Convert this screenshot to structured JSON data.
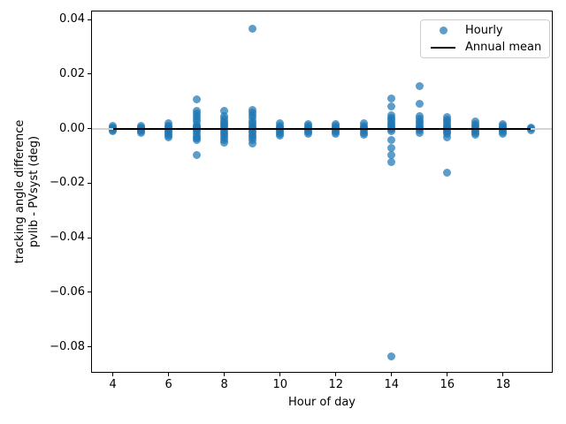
{
  "legend": {
    "items": [
      {
        "label": "Hourly",
        "marker": "dot-icon"
      },
      {
        "label": "Annual mean",
        "marker": "line-icon"
      }
    ]
  },
  "chart_data": {
    "type": "scatter",
    "title": "",
    "xlabel": "Hour of day",
    "ylabel_line1": "tracking angle difference",
    "ylabel_line2": "pvlib - PVsyst (deg)",
    "xlim": [
      3.25,
      19.75
    ],
    "ylim": [
      -0.0892,
      0.043
    ],
    "x_ticks": [
      4,
      6,
      8,
      10,
      12,
      14,
      16,
      18
    ],
    "x_tick_labels": [
      "4",
      "6",
      "8",
      "10",
      "12",
      "14",
      "16",
      "18"
    ],
    "y_ticks": [
      0.04,
      0.02,
      0.0,
      -0.02,
      -0.04,
      -0.06,
      -0.08
    ],
    "y_tick_labels": [
      "0.04",
      "0.02",
      "0.00",
      "−0.02",
      "−0.04",
      "−0.06",
      "−0.08"
    ],
    "grid": false,
    "legend_position": "upper right",
    "colors": {
      "scatter": "#1f77b4",
      "scatter_alpha": 0.72,
      "mean_line": "#000000",
      "zero_line": "#d3d3d3"
    },
    "series": [
      {
        "name": "Hourly",
        "kind": "scatter",
        "points_by_hour": {
          "4": [
            0.001,
            0.0005,
            0.0,
            -0.0005,
            -0.001
          ],
          "5": [
            0.001,
            0.0005,
            0.0,
            -0.0005,
            -0.001,
            -0.0015
          ],
          "6": [
            0.002,
            0.0012,
            0.0006,
            0.0,
            -0.0006,
            -0.0013,
            -0.002,
            -0.0026,
            -0.0032
          ],
          "7": [
            0.0106,
            0.0064,
            0.0055,
            0.0045,
            0.0035,
            0.0025,
            0.0015,
            0.0008,
            0.0003,
            0.0,
            -0.0004,
            -0.001,
            -0.0018,
            -0.0027,
            -0.0036,
            -0.0043,
            -0.0097
          ],
          "8": [
            0.0064,
            0.0045,
            0.0035,
            0.0027,
            0.002,
            0.0013,
            0.0007,
            0.0,
            -0.0007,
            -0.0015,
            -0.0023,
            -0.0031,
            -0.0042,
            -0.0052
          ],
          "9": [
            0.0368,
            0.0068,
            0.0058,
            0.0048,
            0.0038,
            0.0028,
            0.002,
            0.0012,
            0.0005,
            0.0,
            -0.0008,
            -0.0016,
            -0.0024,
            -0.0033,
            -0.0042,
            -0.0053
          ],
          "10": [
            0.002,
            0.0012,
            0.0005,
            0.0,
            -0.0006,
            -0.0013,
            -0.002,
            -0.0026
          ],
          "11": [
            0.0018,
            0.001,
            0.0004,
            0.0,
            -0.0005,
            -0.0012,
            -0.0019
          ],
          "12": [
            0.0018,
            0.001,
            0.0004,
            0.0,
            -0.0005,
            -0.0012,
            -0.0019
          ],
          "13": [
            0.002,
            0.0012,
            0.0005,
            0.0,
            -0.0006,
            -0.0014,
            -0.0021
          ],
          "14": [
            0.0111,
            0.0083,
            0.0048,
            0.004,
            0.0032,
            0.0024,
            0.0016,
            0.0009,
            0.0003,
            -0.0003,
            -0.0009,
            -0.0043,
            -0.007,
            -0.0097,
            -0.0124,
            -0.0835
          ],
          "15": [
            0.0155,
            0.009,
            0.0045,
            0.0037,
            0.0028,
            0.002,
            0.0012,
            0.0005,
            0.0,
            -0.0007,
            -0.0015
          ],
          "16": [
            0.0042,
            0.0034,
            0.0026,
            0.0018,
            0.001,
            0.0004,
            0.0,
            -0.0006,
            -0.0013,
            -0.002,
            -0.0031,
            -0.016
          ],
          "17": [
            0.0025,
            0.0017,
            0.001,
            0.0004,
            -0.0002,
            -0.0009,
            -0.0016,
            -0.0022
          ],
          "18": [
            0.0018,
            0.0011,
            0.0005,
            0.0,
            -0.0006,
            -0.0012,
            -0.0018
          ],
          "19": [
            0.0005,
            0.0,
            -0.0005
          ]
        }
      },
      {
        "name": "Annual mean",
        "kind": "line",
        "y": 0.0,
        "x_start": 4,
        "x_end": 19
      }
    ],
    "zero_reference_line": {
      "y": 0.0,
      "full_width": true
    }
  }
}
